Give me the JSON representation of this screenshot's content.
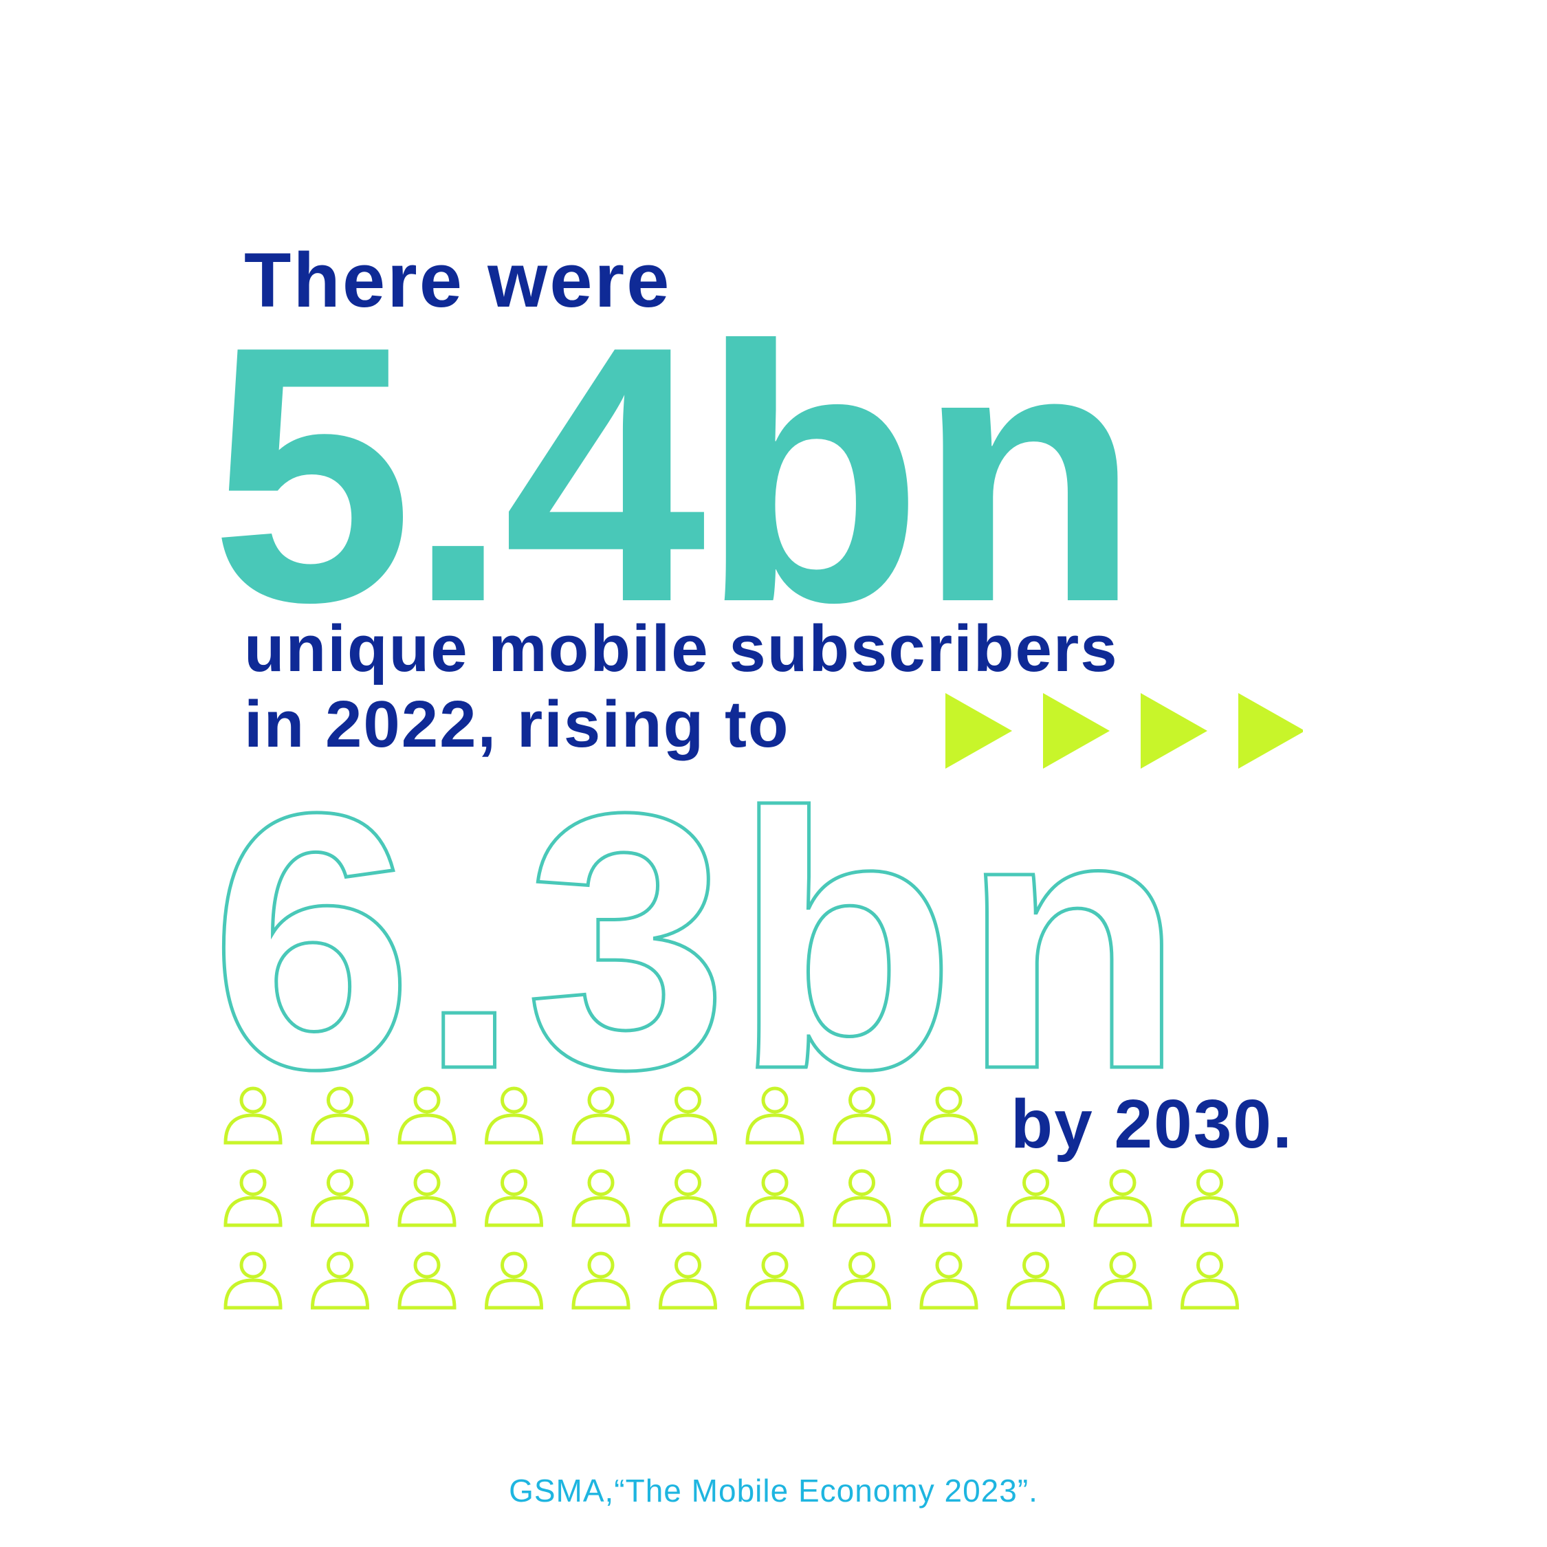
{
  "intro": "There were",
  "current_value": "5.4bn",
  "subline_1": "unique mobile subscribers",
  "subline_2": "in 2022, rising to",
  "future_value": "6.3bn",
  "suffix": "by 2030.",
  "source": "GSMA,“The Mobile Economy 2023”.",
  "icons": {
    "arrow": "play-arrow-icon",
    "arrow_count": 4,
    "person": "person-outline-icon",
    "person_rows": [
      9,
      12,
      12
    ]
  },
  "colors": {
    "navy": "#0F2A96",
    "teal": "#49C8B8",
    "lime": "#C8F52A",
    "source_blue": "#1EB5E0"
  }
}
